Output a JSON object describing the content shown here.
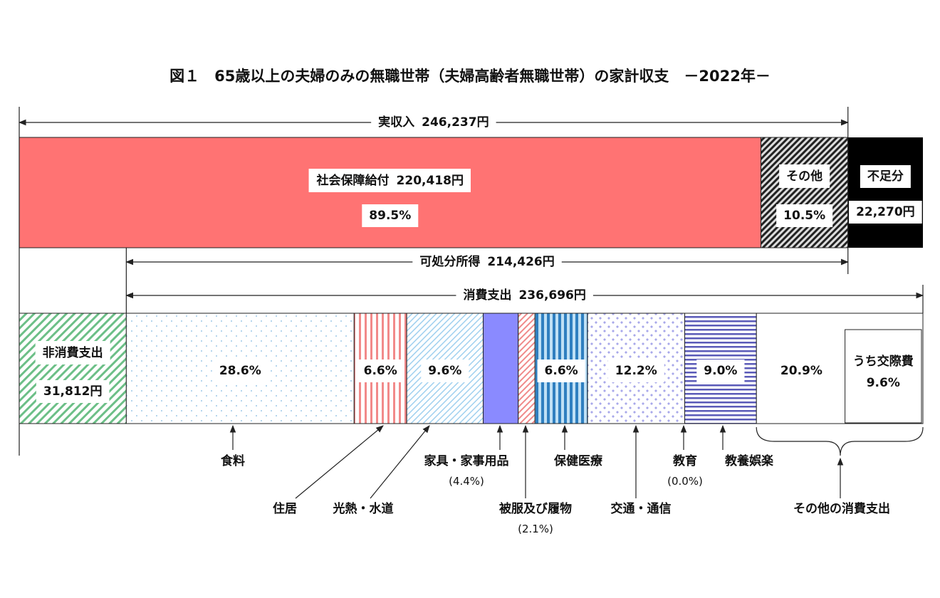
{
  "title": "図１　65歳以上の夫婦のみの無職世帯（夫婦高齢者無職世帯）の家計収支　－2022年－",
  "income": {
    "label": "実収入",
    "value": 246237,
    "value_label": "246,237円"
  },
  "income_segments": [
    {
      "name": "社会保障給付",
      "value": 220418,
      "value_label": "220,418円",
      "share": 89.5,
      "share_label": "89.5%"
    },
    {
      "name": "その他",
      "share": 10.5,
      "share_label": "10.5%"
    }
  ],
  "deficit": {
    "name": "不足分",
    "value": 22270,
    "value_label": "22,270円"
  },
  "disposable": {
    "label": "可処分所得",
    "value": 214426,
    "value_label": "214,426円"
  },
  "consumption": {
    "label": "消費支出",
    "value": 236696,
    "value_label": "236,696円"
  },
  "non_consumption": {
    "name": "非消費支出",
    "value": 31812,
    "value_label": "31,812円"
  },
  "categories": [
    {
      "name": "食料",
      "share": 28.6,
      "share_label": "28.6%"
    },
    {
      "name": "住居",
      "share": 6.6,
      "share_label": "6.6%"
    },
    {
      "name": "光熱・水道",
      "share": 9.6,
      "share_label": "9.6%"
    },
    {
      "name": "家具・家事用品",
      "share": 4.4,
      "share_label": "(4.4%)"
    },
    {
      "name": "被服及び履物",
      "share": 2.1,
      "share_label": "(2.1%)"
    },
    {
      "name": "保健医療",
      "share": 6.6,
      "share_label": "6.6%"
    },
    {
      "name": "交通・通信",
      "share": 12.2,
      "share_label": "12.2%"
    },
    {
      "name": "教育",
      "share": 0.0,
      "share_label": "(0.0%)"
    },
    {
      "name": "教養娯楽",
      "share": 9.0,
      "share_label": "9.0%"
    },
    {
      "name": "その他の消費支出",
      "share": 20.9,
      "share_label": "20.9%",
      "sub": {
        "name": "うち交際費",
        "share": 9.6,
        "share_label": "9.6%"
      }
    }
  ]
}
